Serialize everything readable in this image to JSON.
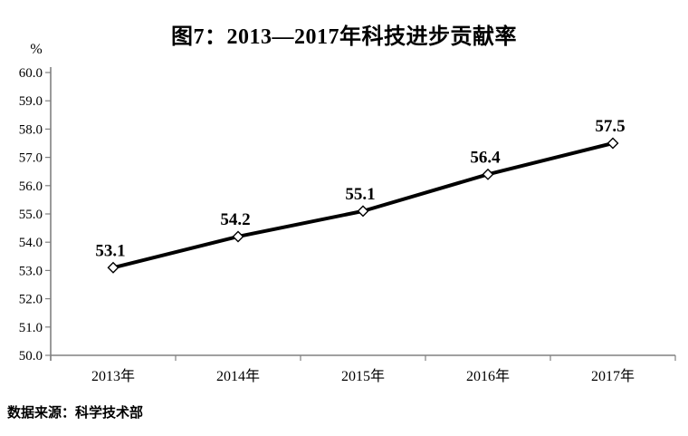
{
  "page": {
    "title": "图7：2013—2017年科技进步贡献率",
    "source_note": "数据来源：科学技术部"
  },
  "chart_data": {
    "type": "line",
    "title": "图7：2013—2017年科技进步贡献率",
    "categories": [
      "2013年",
      "2014年",
      "2015年",
      "2016年",
      "2017年"
    ],
    "series": [
      {
        "name": "科技进步贡献率",
        "values": [
          53.1,
          54.2,
          55.1,
          56.4,
          57.5
        ]
      }
    ],
    "data_labels": [
      "53.1",
      "54.2",
      "55.1",
      "56.4",
      "57.5"
    ],
    "xlabel": "",
    "ylabel": "%",
    "ylim": [
      50.0,
      60.0
    ],
    "ytick_step": 1.0,
    "ytick_labels": [
      "50.0",
      "51.0",
      "52.0",
      "53.0",
      "54.0",
      "55.0",
      "56.0",
      "57.0",
      "58.0",
      "59.0",
      "60.0"
    ],
    "grid": false,
    "legend_position": "none",
    "line_color": "#000000",
    "marker": "diamond-open",
    "marker_fill": "#ffffff",
    "axis_color": "#808080",
    "text_color": "#000000",
    "source": "数据来源：科学技术部"
  }
}
